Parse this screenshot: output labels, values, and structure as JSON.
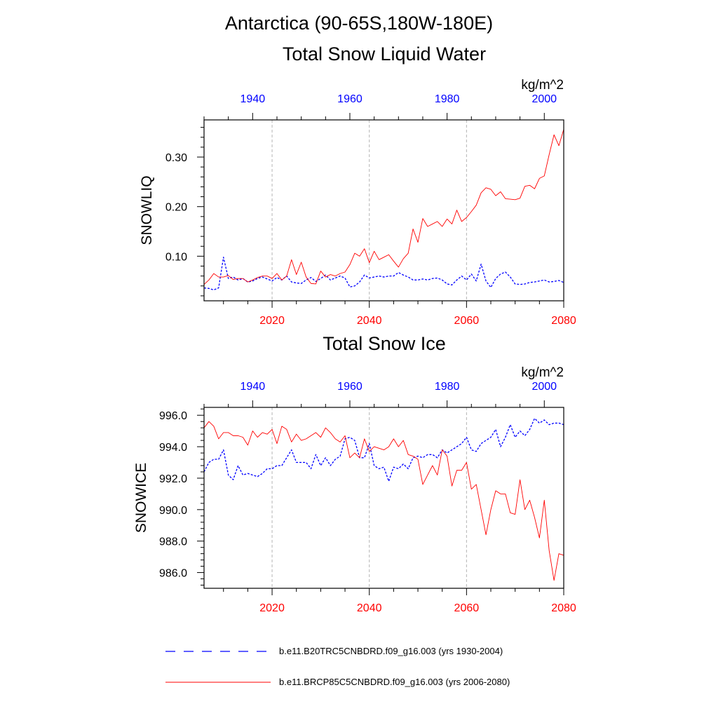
{
  "figure_title": "Antarctica (90-65S,180W-180E)",
  "colors": {
    "historical": "#0000ff",
    "future": "#ff0000",
    "axis": "#000000",
    "grid": "#b4b4b4"
  },
  "legend": [
    {
      "label": "b.e11.B20TRC5CNBDRD.f09_g16.003 (yrs 1930-2004)",
      "style": "dashed",
      "color": "#0000ff"
    },
    {
      "label": "b.e11.BRCP85C5CNBDRD.f09_g16.003 (yrs 2006-2080)",
      "style": "solid",
      "color": "#ff0000"
    }
  ],
  "chart_data": [
    {
      "type": "line",
      "title": "Total Snow Liquid Water",
      "units": "kg/m^2",
      "ylabel": "SNOWLIQ",
      "ylim": [
        0.01,
        0.375
      ],
      "yticks": [
        0.1,
        0.2,
        0.3
      ],
      "yticks_labels": [
        "0.10",
        "0.20",
        "0.30"
      ],
      "bottom_axis": {
        "range": [
          2006,
          2080
        ],
        "ticks": [
          2020,
          2040,
          2060,
          2080
        ],
        "color": "red"
      },
      "top_axis": {
        "range": [
          1930,
          2004
        ],
        "ticks": [
          1940,
          1960,
          1980,
          2000
        ],
        "color": "blue"
      },
      "grid": "vertical dashed at 2020, 2040, 2060",
      "series": [
        {
          "name": "b.e11.B20TRC5CNBDRD.f09_g16.003 (yrs 1930-2004)",
          "style": "dashed",
          "x": [
            1930,
            1931,
            1932,
            1933,
            1934,
            1935,
            1936,
            1937,
            1938,
            1939,
            1940,
            1941,
            1942,
            1943,
            1944,
            1945,
            1946,
            1947,
            1948,
            1949,
            1950,
            1951,
            1952,
            1953,
            1954,
            1955,
            1956,
            1957,
            1958,
            1959,
            1960,
            1961,
            1962,
            1963,
            1964,
            1965,
            1966,
            1967,
            1968,
            1969,
            1970,
            1971,
            1972,
            1973,
            1974,
            1975,
            1976,
            1977,
            1978,
            1979,
            1980,
            1981,
            1982,
            1983,
            1984,
            1985,
            1986,
            1987,
            1988,
            1989,
            1990,
            1991,
            1992,
            1993,
            1994,
            1995,
            1996,
            1997,
            1998,
            1999,
            2000,
            2001,
            2002,
            2003,
            2004
          ],
          "values": [
            0.036,
            0.035,
            0.032,
            0.036,
            0.098,
            0.055,
            0.058,
            0.052,
            0.055,
            0.048,
            0.05,
            0.055,
            0.058,
            0.054,
            0.05,
            0.057,
            0.052,
            0.06,
            0.048,
            0.046,
            0.045,
            0.052,
            0.057,
            0.049,
            0.055,
            0.062,
            0.052,
            0.056,
            0.06,
            0.056,
            0.038,
            0.04,
            0.048,
            0.062,
            0.056,
            0.058,
            0.06,
            0.058,
            0.06,
            0.06,
            0.067,
            0.062,
            0.058,
            0.052,
            0.052,
            0.054,
            0.052,
            0.055,
            0.056,
            0.052,
            0.044,
            0.042,
            0.052,
            0.06,
            0.052,
            0.064,
            0.05,
            0.084,
            0.05,
            0.037,
            0.055,
            0.064,
            0.068,
            0.058,
            0.044,
            0.043,
            0.044,
            0.047,
            0.048,
            0.05,
            0.052,
            0.048,
            0.049,
            0.051,
            0.047
          ]
        },
        {
          "name": "b.e11.BRCP85C5CNBDRD.f09_g16.003 (yrs 2006-2080)",
          "style": "solid",
          "x": [
            2006,
            2007,
            2008,
            2009,
            2010,
            2011,
            2012,
            2013,
            2014,
            2015,
            2016,
            2017,
            2018,
            2019,
            2020,
            2021,
            2022,
            2023,
            2024,
            2025,
            2026,
            2027,
            2028,
            2029,
            2030,
            2031,
            2032,
            2033,
            2034,
            2035,
            2036,
            2037,
            2038,
            2039,
            2040,
            2041,
            2042,
            2043,
            2044,
            2045,
            2046,
            2047,
            2048,
            2049,
            2050,
            2051,
            2052,
            2053,
            2054,
            2055,
            2056,
            2057,
            2058,
            2059,
            2060,
            2061,
            2062,
            2063,
            2064,
            2065,
            2066,
            2067,
            2068,
            2069,
            2070,
            2071,
            2072,
            2073,
            2074,
            2075,
            2076,
            2077,
            2078,
            2079,
            2080
          ],
          "values": [
            0.043,
            0.052,
            0.065,
            0.058,
            0.058,
            0.061,
            0.053,
            0.055,
            0.055,
            0.048,
            0.052,
            0.057,
            0.06,
            0.06,
            0.055,
            0.065,
            0.052,
            0.06,
            0.093,
            0.063,
            0.088,
            0.058,
            0.045,
            0.044,
            0.07,
            0.058,
            0.063,
            0.06,
            0.065,
            0.068,
            0.083,
            0.106,
            0.1,
            0.115,
            0.087,
            0.11,
            0.093,
            0.098,
            0.103,
            0.09,
            0.078,
            0.095,
            0.106,
            0.155,
            0.128,
            0.176,
            0.16,
            0.165,
            0.17,
            0.16,
            0.175,
            0.165,
            0.193,
            0.17,
            0.178,
            0.19,
            0.203,
            0.228,
            0.238,
            0.235,
            0.222,
            0.23,
            0.216,
            0.215,
            0.214,
            0.217,
            0.241,
            0.243,
            0.236,
            0.257,
            0.262,
            0.305,
            0.345,
            0.323,
            0.356
          ]
        }
      ]
    },
    {
      "type": "line",
      "title": "Total Snow Ice",
      "units": "kg/m^2",
      "ylabel": "SNOWICE",
      "ylim": [
        985.0,
        996.5
      ],
      "yticks": [
        986.0,
        988.0,
        990.0,
        992.0,
        994.0,
        996.0
      ],
      "yticks_labels": [
        "986.0",
        "988.0",
        "990.0",
        "992.0",
        "994.0",
        "996.0"
      ],
      "bottom_axis": {
        "range": [
          2006,
          2080
        ],
        "ticks": [
          2020,
          2040,
          2060,
          2080
        ],
        "color": "red"
      },
      "top_axis": {
        "range": [
          1930,
          2004
        ],
        "ticks": [
          1940,
          1960,
          1980,
          2000
        ],
        "color": "blue"
      },
      "grid": "vertical dashed at 2020, 2040, 2060",
      "series": [
        {
          "name": "b.e11.B20TRC5CNBDRD.f09_g16.003 (yrs 1930-2004)",
          "style": "dashed",
          "x": [
            1930,
            1931,
            1932,
            1933,
            1934,
            1935,
            1936,
            1937,
            1938,
            1939,
            1940,
            1941,
            1942,
            1943,
            1944,
            1945,
            1946,
            1947,
            1948,
            1949,
            1950,
            1951,
            1952,
            1953,
            1954,
            1955,
            1956,
            1957,
            1958,
            1959,
            1960,
            1961,
            1962,
            1963,
            1964,
            1965,
            1966,
            1967,
            1968,
            1969,
            1970,
            1971,
            1972,
            1973,
            1974,
            1975,
            1976,
            1977,
            1978,
            1979,
            1980,
            1981,
            1982,
            1983,
            1984,
            1985,
            1986,
            1987,
            1988,
            1989,
            1990,
            1991,
            1992,
            1993,
            1994,
            1995,
            1996,
            1997,
            1998,
            1999,
            2000,
            2001,
            2002,
            2003,
            2004
          ],
          "values": [
            992.4,
            993.0,
            993.2,
            993.2,
            993.8,
            992.2,
            991.9,
            992.8,
            992.2,
            992.3,
            992.2,
            992.1,
            992.3,
            992.6,
            992.6,
            992.8,
            992.8,
            993.3,
            993.8,
            993.0,
            993.0,
            993.0,
            992.6,
            993.5,
            992.8,
            993.3,
            992.8,
            993.2,
            993.4,
            994.5,
            994.6,
            994.4,
            993.3,
            993.3,
            994.2,
            992.8,
            992.6,
            992.7,
            991.8,
            992.7,
            992.6,
            992.9,
            992.6,
            993.3,
            993.4,
            993.3,
            993.5,
            993.5,
            993.3,
            993.8,
            993.6,
            993.8,
            994.0,
            994.2,
            994.6,
            993.8,
            993.7,
            994.2,
            994.4,
            994.6,
            995.1,
            994.0,
            994.6,
            995.4,
            994.6,
            995.0,
            994.7,
            995.1,
            995.8,
            995.5,
            995.7,
            995.4,
            995.5,
            995.5,
            995.4
          ]
        },
        {
          "name": "b.e11.BRCP85C5CNBDRD.f09_g16.003 (yrs 2006-2080)",
          "style": "solid",
          "x": [
            2006,
            2007,
            2008,
            2009,
            2010,
            2011,
            2012,
            2013,
            2014,
            2015,
            2016,
            2017,
            2018,
            2019,
            2020,
            2021,
            2022,
            2023,
            2024,
            2025,
            2026,
            2027,
            2028,
            2029,
            2030,
            2031,
            2032,
            2033,
            2034,
            2035,
            2036,
            2037,
            2038,
            2039,
            2040,
            2041,
            2042,
            2043,
            2044,
            2045,
            2046,
            2047,
            2048,
            2049,
            2050,
            2051,
            2052,
            2053,
            2054,
            2055,
            2056,
            2057,
            2058,
            2059,
            2060,
            2061,
            2062,
            2063,
            2064,
            2065,
            2066,
            2067,
            2068,
            2069,
            2070,
            2071,
            2072,
            2073,
            2074,
            2075,
            2076,
            2077,
            2078,
            2079,
            2080
          ],
          "values": [
            995.2,
            995.6,
            995.3,
            994.5,
            994.9,
            994.9,
            994.7,
            994.7,
            994.6,
            994.1,
            995.0,
            994.6,
            994.9,
            994.8,
            995.1,
            994.2,
            995.3,
            995.1,
            994.3,
            994.8,
            994.4,
            994.5,
            994.7,
            994.9,
            994.6,
            995.2,
            994.9,
            994.5,
            994.3,
            994.7,
            993.3,
            993.6,
            993.3,
            994.5,
            993.7,
            994.0,
            993.9,
            993.8,
            994.0,
            994.5,
            994.0,
            994.4,
            993.5,
            993.4,
            993.2,
            991.6,
            992.2,
            992.8,
            992.2,
            993.8,
            993.4,
            991.5,
            992.5,
            992.5,
            993.0,
            991.3,
            991.6,
            990.0,
            988.4,
            990.0,
            991.2,
            991.0,
            991.0,
            989.8,
            989.7,
            991.9,
            990.0,
            990.6,
            989.5,
            988.2,
            990.6,
            987.4,
            985.5,
            987.2,
            987.1
          ]
        }
      ]
    }
  ]
}
